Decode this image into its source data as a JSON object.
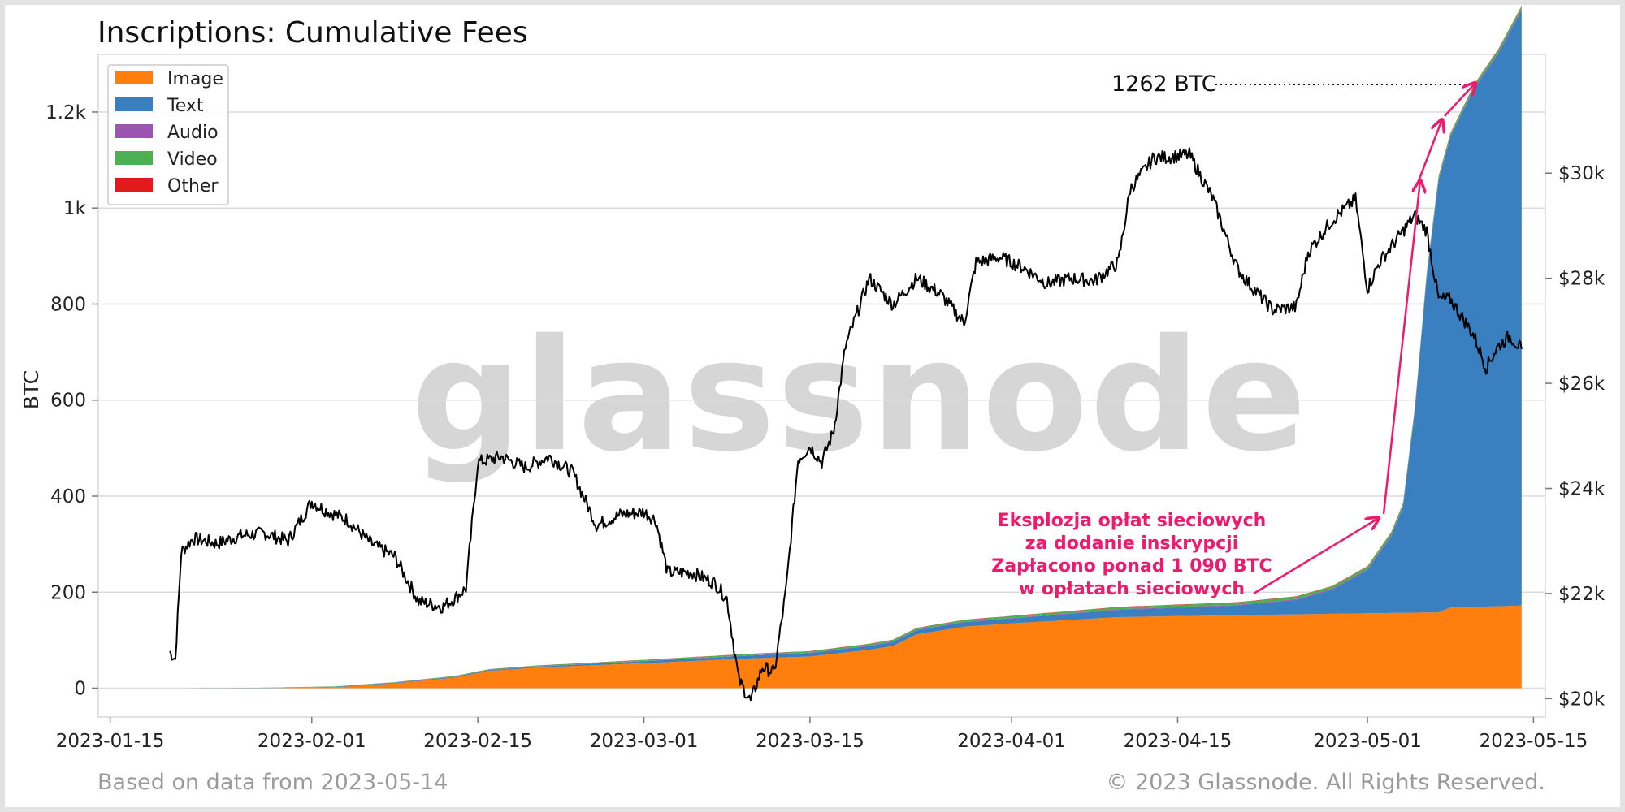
{
  "chart_data": {
    "type": "area",
    "title": "Inscriptions: Cumulative Fees",
    "ylabel": "BTC",
    "ylim": [
      -60,
      1320
    ],
    "y_ticks": [
      0,
      200,
      400,
      600,
      800,
      "1k",
      "1.2k"
    ],
    "y2_ticks": [
      "$20k",
      "$22k",
      "$24k",
      "$26k",
      "$28k",
      "$30k"
    ],
    "y2lim": [
      19650,
      32260
    ],
    "x_ticks": [
      "2023-01-15",
      "2023-02-01",
      "2023-02-15",
      "2023-03-01",
      "2023-03-15",
      "2023-04-01",
      "2023-04-15",
      "2023-05-01",
      "2023-05-15"
    ],
    "xlim": [
      "2023-01-14",
      "2023-05-16"
    ],
    "legend": {
      "placement": "top-left",
      "entries": [
        "Image",
        "Text",
        "Audio",
        "Video",
        "Other"
      ]
    },
    "colors": {
      "Image": "#ff7f0e",
      "Text": "#3a7fbf",
      "Audio": "#9b55b0",
      "Video": "#4caf50",
      "Other": "#e31a1c",
      "price": "#000000",
      "annotation": "#ee1a6e"
    },
    "grid": true,
    "series": [
      {
        "name": "Image",
        "x": [
          "2023-01-21",
          "2023-01-28",
          "2023-02-03",
          "2023-02-08",
          "2023-02-13",
          "2023-02-16",
          "2023-02-20",
          "2023-03-01",
          "2023-03-10",
          "2023-03-15",
          "2023-03-20",
          "2023-03-22",
          "2023-03-24",
          "2023-03-28",
          "2023-04-01",
          "2023-04-10",
          "2023-04-20",
          "2023-05-01",
          "2023-05-07",
          "2023-05-08",
          "2023-05-14"
        ],
        "values": [
          0,
          0,
          2,
          10,
          22,
          36,
          43,
          52,
          62,
          66,
          80,
          88,
          112,
          128,
          135,
          148,
          152,
          156,
          158,
          168,
          172
        ]
      },
      {
        "name": "Text",
        "x": [
          "2023-01-21",
          "2023-02-20",
          "2023-03-01",
          "2023-03-10",
          "2023-03-20",
          "2023-04-01",
          "2023-04-10",
          "2023-04-20",
          "2023-04-25",
          "2023-04-28",
          "2023-05-01",
          "2023-05-03",
          "2023-05-04",
          "2023-05-05",
          "2023-05-06",
          "2023-05-07",
          "2023-05-08",
          "2023-05-10",
          "2023-05-12",
          "2023-05-14"
        ],
        "values": [
          0,
          2,
          4,
          6,
          8,
          10,
          15,
          20,
          30,
          50,
          90,
          160,
          220,
          420,
          700,
          900,
          980,
          1080,
          1150,
          1240
        ]
      },
      {
        "name": "Audio",
        "x": [
          "2023-01-21",
          "2023-05-14"
        ],
        "values": [
          0,
          2
        ]
      },
      {
        "name": "Video",
        "x": [
          "2023-01-21",
          "2023-05-14"
        ],
        "values": [
          0,
          6
        ]
      },
      {
        "name": "Other",
        "x": [
          "2023-01-21",
          "2023-05-14"
        ],
        "values": [
          0,
          1
        ]
      },
      {
        "name": "BTC price (right axis)",
        "x": [
          "2023-01-20",
          "2023-01-20.5",
          "2023-01-21",
          "2023-01-22",
          "2023-01-24",
          "2023-01-26",
          "2023-01-28",
          "2023-01-30",
          "2023-02-01",
          "2023-02-02",
          "2023-02-04",
          "2023-02-06",
          "2023-02-08",
          "2023-02-10",
          "2023-02-12",
          "2023-02-13",
          "2023-02-14",
          "2023-02-15",
          "2023-02-17",
          "2023-02-19",
          "2023-02-21",
          "2023-02-23",
          "2023-02-25",
          "2023-02-27",
          "2023-03-01",
          "2023-03-02",
          "2023-03-03",
          "2023-03-05",
          "2023-03-07",
          "2023-03-08",
          "2023-03-09",
          "2023-03-10",
          "2023-03-11",
          "2023-03-12",
          "2023-03-13",
          "2023-03-14",
          "2023-03-15",
          "2023-03-16",
          "2023-03-17",
          "2023-03-18",
          "2023-03-20",
          "2023-03-22",
          "2023-03-24",
          "2023-03-26",
          "2023-03-28",
          "2023-03-29",
          "2023-03-31",
          "2023-04-02",
          "2023-04-04",
          "2023-04-06",
          "2023-04-08",
          "2023-04-10",
          "2023-04-11",
          "2023-04-13",
          "2023-04-14",
          "2023-04-16",
          "2023-04-18",
          "2023-04-20",
          "2023-04-21",
          "2023-04-23",
          "2023-04-25",
          "2023-04-26",
          "2023-04-28",
          "2023-04-30",
          "2023-05-01",
          "2023-05-02",
          "2023-05-04",
          "2023-05-05",
          "2023-05-06",
          "2023-05-07",
          "2023-05-08",
          "2023-05-10",
          "2023-05-11",
          "2023-05-12",
          "2023-05-13",
          "2023-05-14"
        ],
        "values": [
          20900,
          20750,
          22800,
          23050,
          22950,
          23100,
          23150,
          23000,
          23750,
          23600,
          23400,
          22950,
          22700,
          21850,
          21750,
          21900,
          22100,
          24500,
          24600,
          24400,
          24600,
          24300,
          23300,
          23500,
          23550,
          23400,
          22400,
          22400,
          22200,
          21900,
          20350,
          19950,
          20600,
          20500,
          22100,
          24550,
          24800,
          24500,
          25100,
          26700,
          28000,
          27500,
          28000,
          27700,
          27150,
          28300,
          28400,
          28200,
          27900,
          28000,
          27950,
          28300,
          29700,
          30300,
          30300,
          30350,
          29500,
          28200,
          27900,
          27400,
          27450,
          28500,
          29100,
          29500,
          27800,
          28300,
          28900,
          29200,
          28900,
          27600,
          27600,
          26900,
          26300,
          26700,
          26900,
          26650
        ]
      }
    ]
  },
  "annotations": {
    "max_label": "1262 BTC",
    "lines": [
      "Eksplozja opłat sieciowych",
      "za dodanie inskrypcji",
      "Zapłacono ponad 1 090 BTC",
      "w opłatach sieciowych"
    ]
  },
  "watermark": "glassnode",
  "footer": {
    "left": "Based on data from 2023-05-14",
    "right": "© 2023 Glassnode. All Rights Reserved."
  }
}
